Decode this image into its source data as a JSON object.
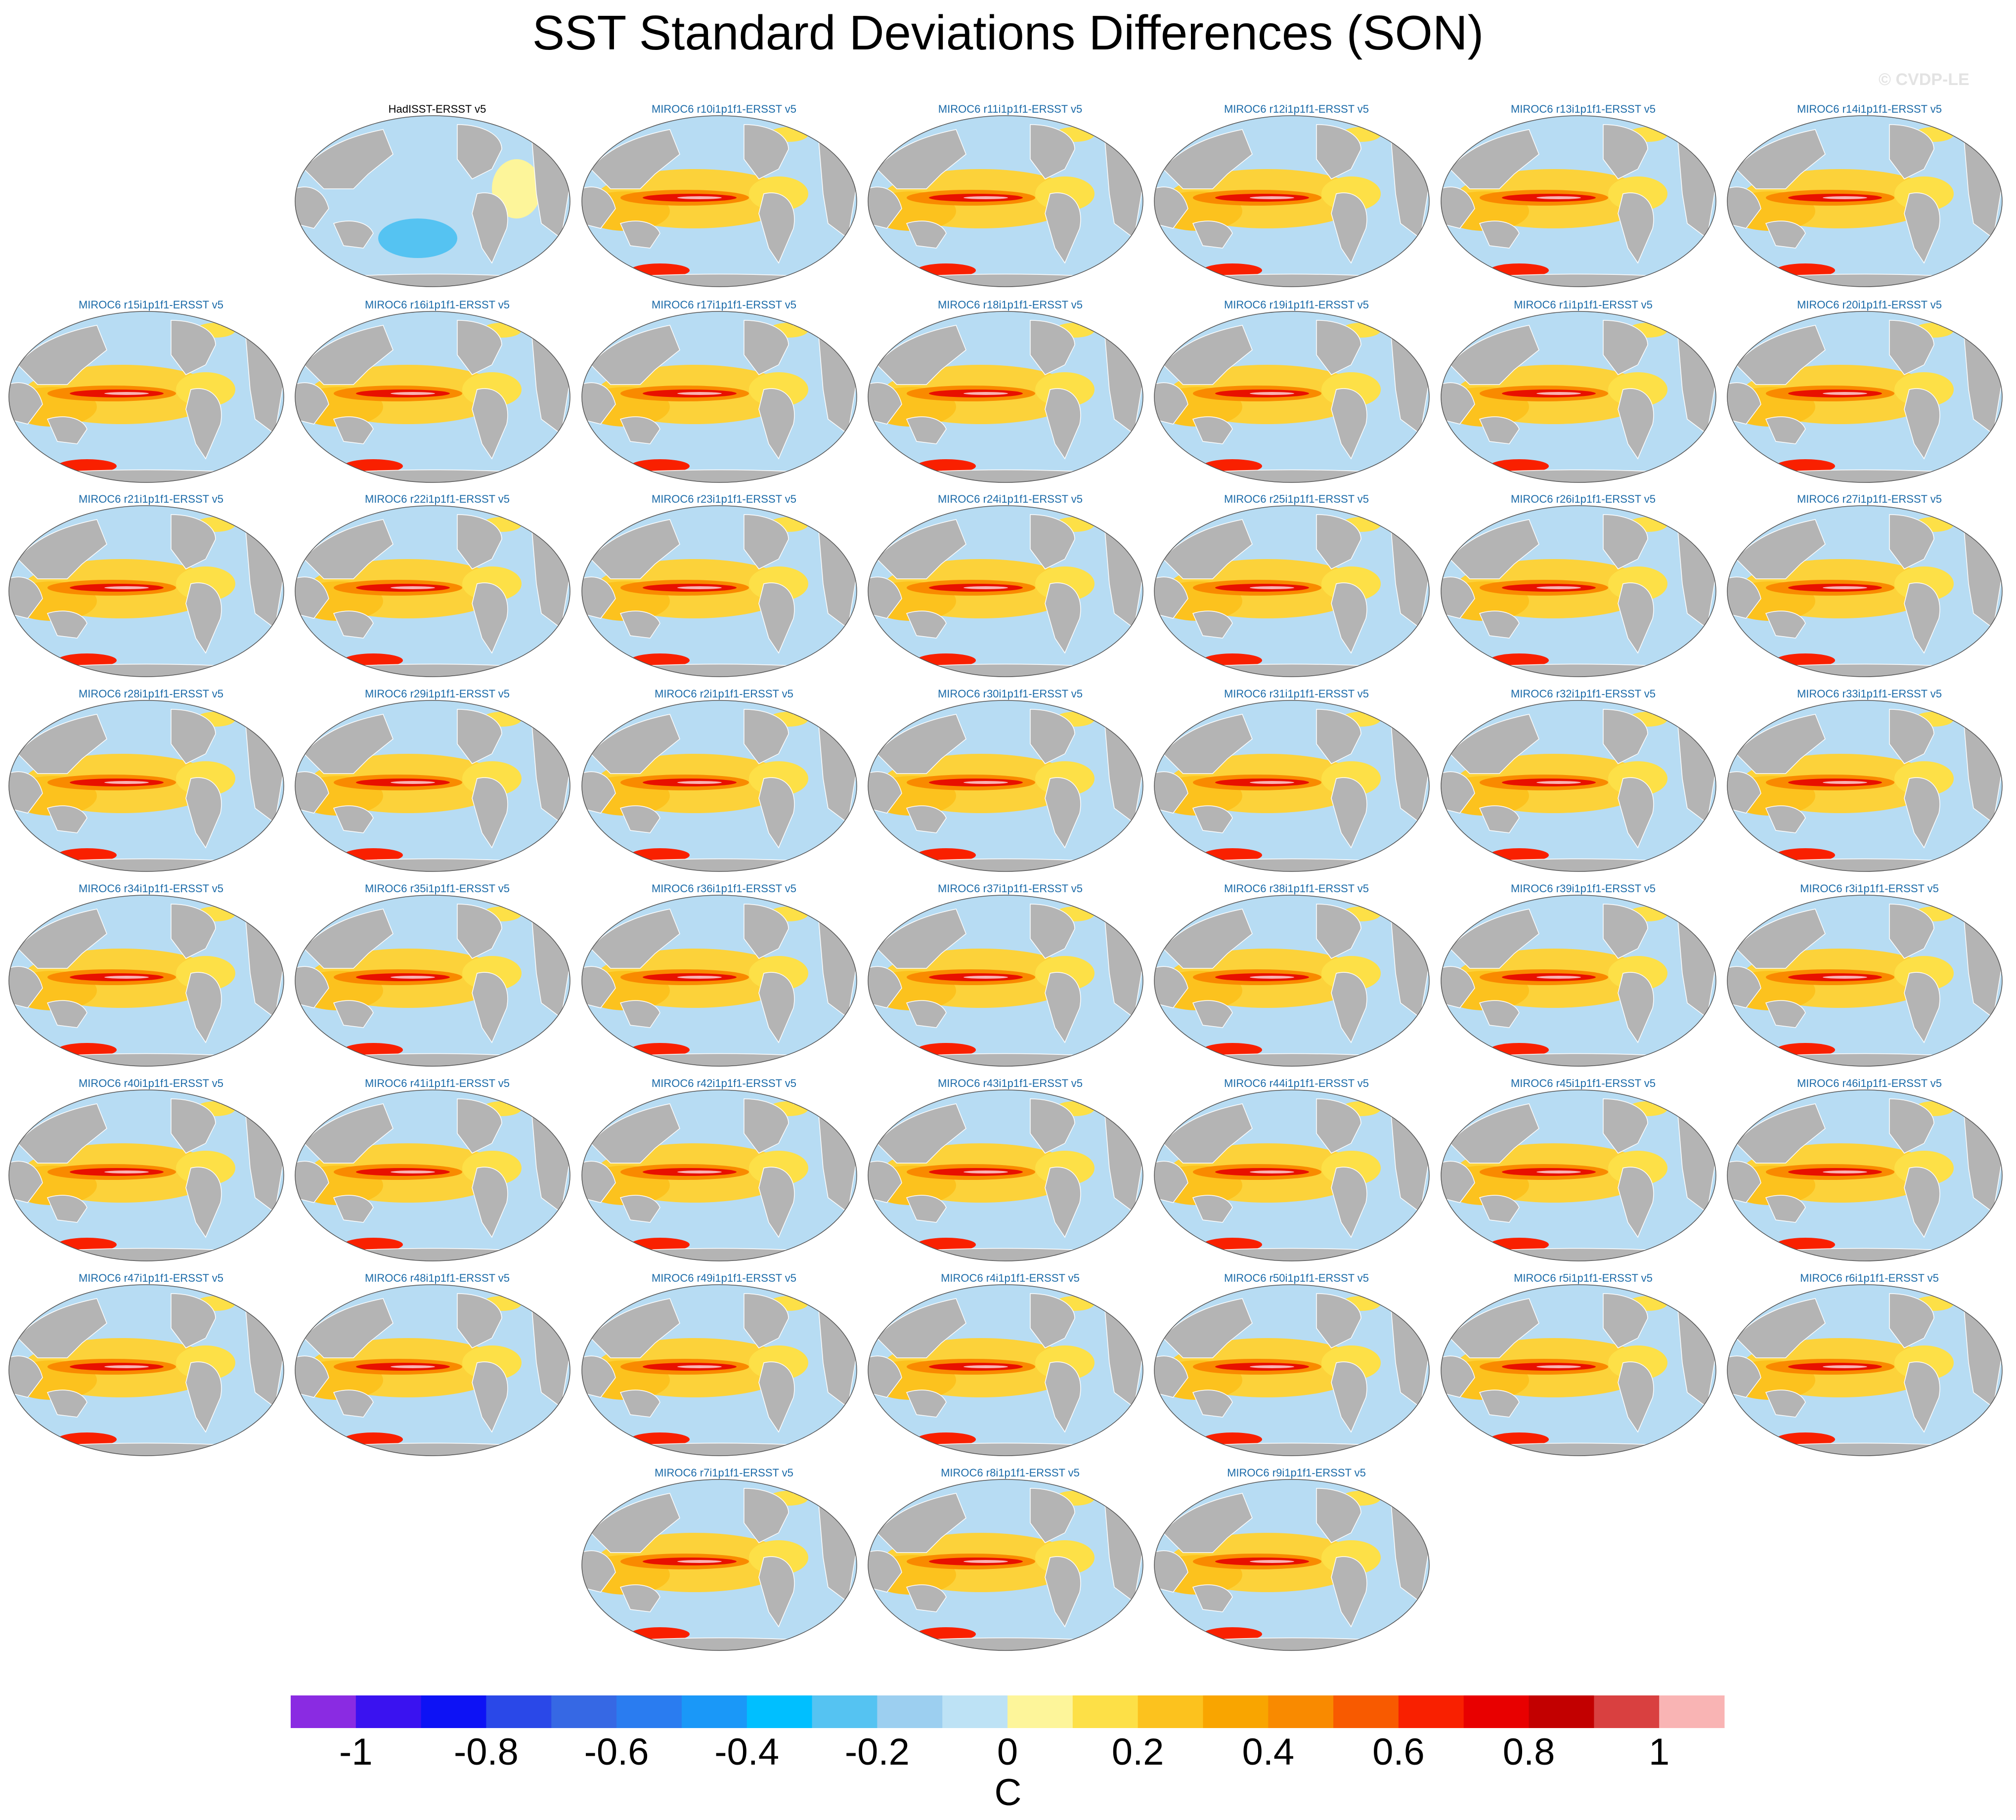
{
  "title": "SST Standard Deviations Differences (SON)",
  "watermark": "© CVDP-LE",
  "panels": [
    "HadISST-ERSST v5",
    "MIROC6 r10i1p1f1-ERSST v5",
    "MIROC6 r11i1p1f1-ERSST v5",
    "MIROC6 r12i1p1f1-ERSST v5",
    "MIROC6 r13i1p1f1-ERSST v5",
    "MIROC6 r14i1p1f1-ERSST v5",
    "MIROC6 r15i1p1f1-ERSST v5",
    "MIROC6 r16i1p1f1-ERSST v5",
    "MIROC6 r17i1p1f1-ERSST v5",
    "MIROC6 r18i1p1f1-ERSST v5",
    "MIROC6 r19i1p1f1-ERSST v5",
    "MIROC6 r1i1p1f1-ERSST v5",
    "MIROC6 r20i1p1f1-ERSST v5",
    "MIROC6 r21i1p1f1-ERSST v5",
    "MIROC6 r22i1p1f1-ERSST v5",
    "MIROC6 r23i1p1f1-ERSST v5",
    "MIROC6 r24i1p1f1-ERSST v5",
    "MIROC6 r25i1p1f1-ERSST v5",
    "MIROC6 r26i1p1f1-ERSST v5",
    "MIROC6 r27i1p1f1-ERSST v5",
    "MIROC6 r28i1p1f1-ERSST v5",
    "MIROC6 r29i1p1f1-ERSST v5",
    "MIROC6 r2i1p1f1-ERSST v5",
    "MIROC6 r30i1p1f1-ERSST v5",
    "MIROC6 r31i1p1f1-ERSST v5",
    "MIROC6 r32i1p1f1-ERSST v5",
    "MIROC6 r33i1p1f1-ERSST v5",
    "MIROC6 r34i1p1f1-ERSST v5",
    "MIROC6 r35i1p1f1-ERSST v5",
    "MIROC6 r36i1p1f1-ERSST v5",
    "MIROC6 r37i1p1f1-ERSST v5",
    "MIROC6 r38i1p1f1-ERSST v5",
    "MIROC6 r39i1p1f1-ERSST v5",
    "MIROC6 r3i1p1f1-ERSST v5",
    "MIROC6 r40i1p1f1-ERSST v5",
    "MIROC6 r41i1p1f1-ERSST v5",
    "MIROC6 r42i1p1f1-ERSST v5",
    "MIROC6 r43i1p1f1-ERSST v5",
    "MIROC6 r44i1p1f1-ERSST v5",
    "MIROC6 r45i1p1f1-ERSST v5",
    "MIROC6 r46i1p1f1-ERSST v5",
    "MIROC6 r47i1p1f1-ERSST v5",
    "MIROC6 r48i1p1f1-ERSST v5",
    "MIROC6 r49i1p1f1-ERSST v5",
    "MIROC6 r4i1p1f1-ERSST v5",
    "MIROC6 r50i1p1f1-ERSST v5",
    "MIROC6 r5i1p1f1-ERSST v5",
    "MIROC6 r6i1p1f1-ERSST v5",
    "MIROC6 r7i1p1f1-ERSST v5",
    "MIROC6 r8i1p1f1-ERSST v5",
    "MIROC6 r9i1p1f1-ERSST v5"
  ],
  "colorbar": {
    "unit": "C",
    "colors": [
      "#8a2be2",
      "#3a12f0",
      "#0d12f5",
      "#2a48e8",
      "#3668e4",
      "#2a7cf0",
      "#1a98f8",
      "#00bfff",
      "#55c3f2",
      "#9ccff0",
      "#bde2f5",
      "#fdf59a",
      "#fde047",
      "#fcc21e",
      "#f9a500",
      "#f98a00",
      "#f85a00",
      "#f92000",
      "#e80000",
      "#c20000",
      "#d94040",
      "#f9b4b4"
    ],
    "tick_labels": [
      "-1",
      "-0.8",
      "-0.6",
      "-0.4",
      "-0.2",
      "0",
      "0.2",
      "0.4",
      "0.6",
      "0.8",
      "1"
    ]
  },
  "palette": {
    "land": "#b4b4b4",
    "ocean_positive": "#fcd23a",
    "ocean_negative": "#b7dcf3",
    "strong_positive": "#e81000",
    "equatorial_core": "#f9b4b4",
    "panel_title": "#1a6aa8"
  }
}
